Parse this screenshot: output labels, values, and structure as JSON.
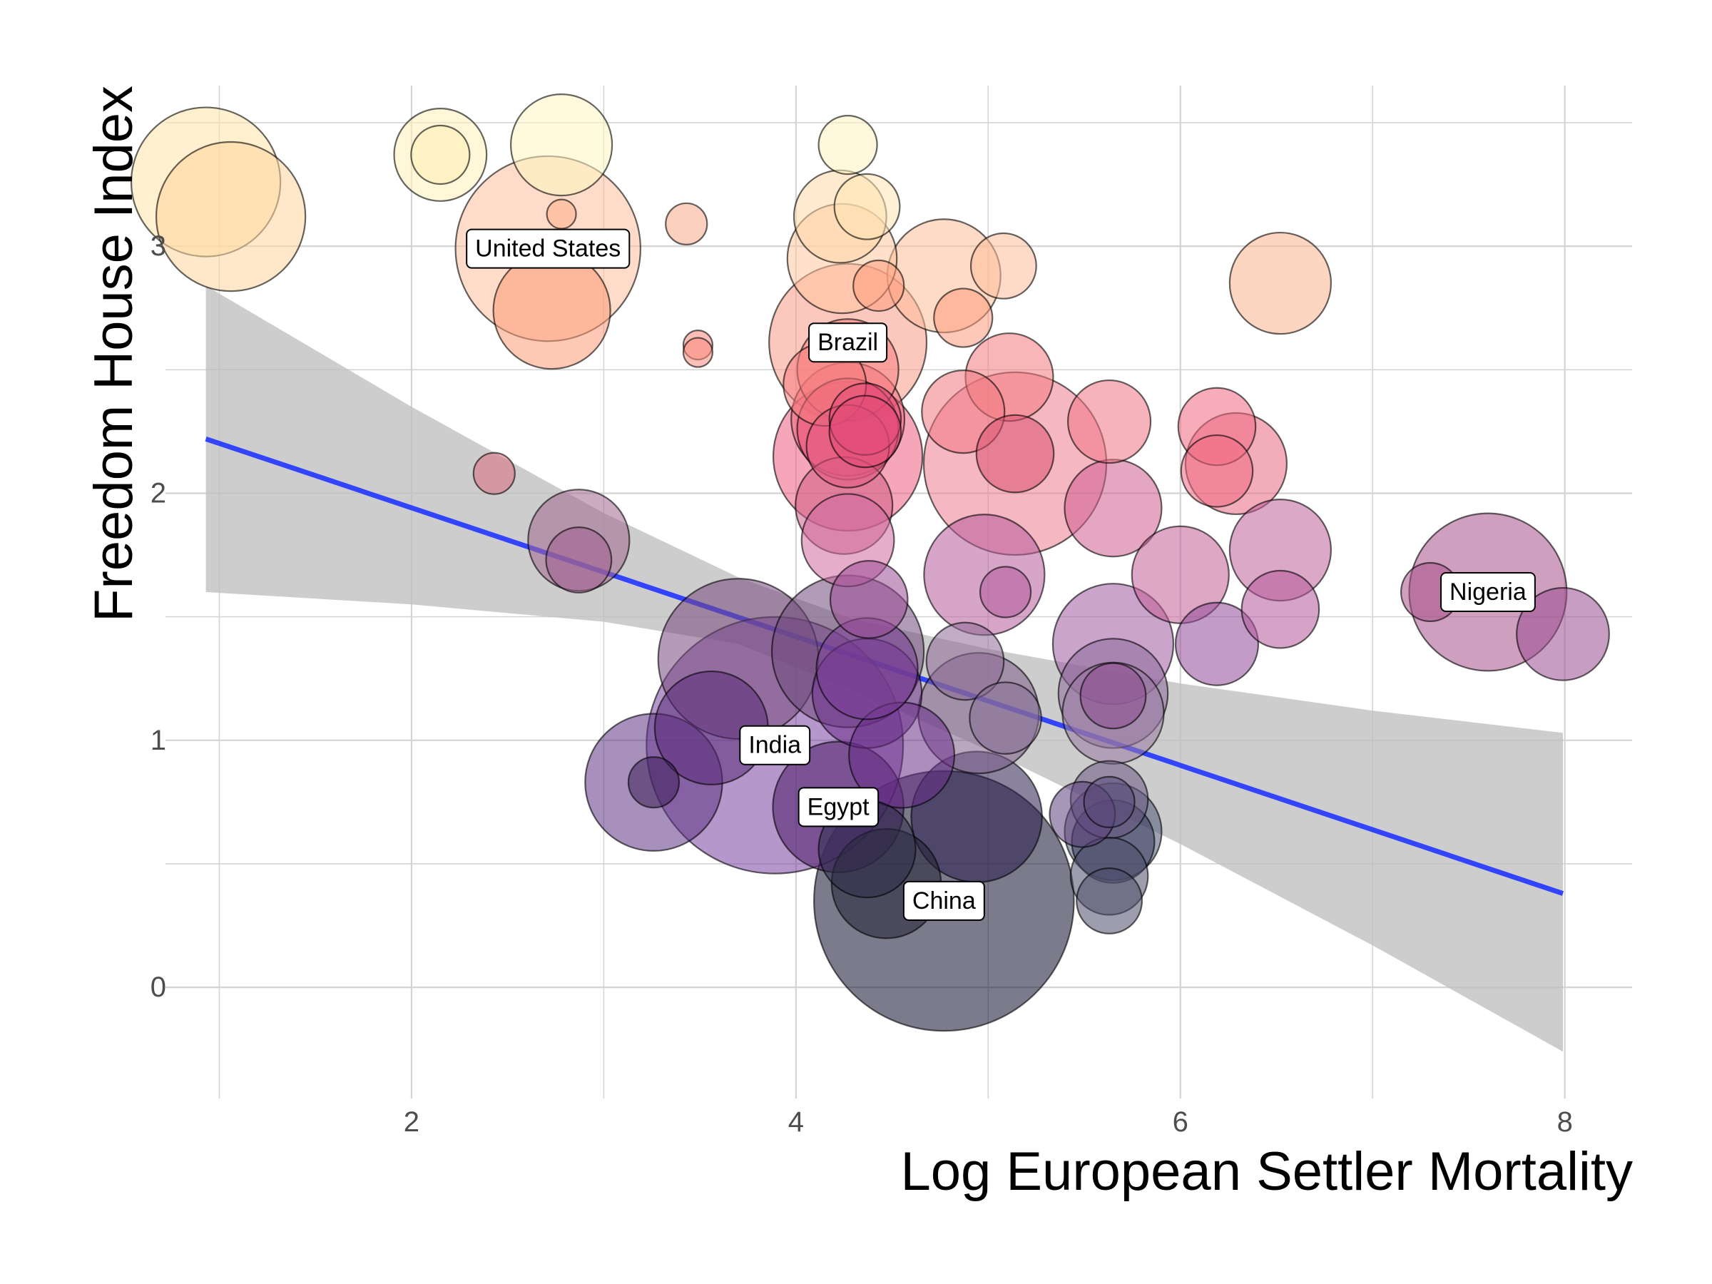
{
  "chart_data": {
    "type": "scatter",
    "title": "",
    "xlabel": "Log European Settler Mortality",
    "ylabel": "Freedom House Index",
    "xlim": [
      0.72,
      8.35
    ],
    "ylim": [
      -0.45,
      3.65
    ],
    "x_ticks": [
      2,
      4,
      6,
      8
    ],
    "x_tick_labels": [
      "2",
      "4",
      "6",
      "8"
    ],
    "y_ticks": [
      0,
      1,
      2,
      3
    ],
    "y_tick_labels": [
      "0",
      "1",
      "2",
      "3"
    ],
    "grid": true,
    "legend": "none",
    "colors": {
      "trend_line": "#3344ff",
      "confidence_band": "#bfbfbf",
      "grid": "#d4d4d4",
      "point_stroke": "#000000",
      "label_box": "#ffffff",
      "palette": [
        "#fff3c0",
        "#ffd09f",
        "#fca98a",
        "#f97a86",
        "#e35a7d",
        "#c06c97",
        "#9f5aa0",
        "#7a3e95",
        "#5a2b78",
        "#2f2e4a"
      ]
    },
    "points": [
      {
        "x": 0.93,
        "y": 3.26,
        "size": 26,
        "color": "#ffe4a8"
      },
      {
        "x": 1.06,
        "y": 3.12,
        "size": 26,
        "color": "#ffd59e"
      },
      {
        "x": 2.15,
        "y": 3.37,
        "size": 10,
        "color": "#fff0b8"
      },
      {
        "x": 2.15,
        "y": 3.37,
        "size": 4,
        "color": "#fff0b8"
      },
      {
        "x": 2.78,
        "y": 3.41,
        "size": 12,
        "color": "#fff6c2"
      },
      {
        "x": 2.78,
        "y": 3.13,
        "size": 1,
        "color": "#ffb18a"
      },
      {
        "x": 2.71,
        "y": 2.99,
        "size": 40,
        "color": "#ffc09d",
        "label": "United States"
      },
      {
        "x": 2.73,
        "y": 2.74,
        "size": 16,
        "color": "#fb9b76"
      },
      {
        "x": 3.43,
        "y": 3.09,
        "size": 2,
        "color": "#f7a98a"
      },
      {
        "x": 3.49,
        "y": 2.6,
        "size": 1,
        "color": "#fa8a7e"
      },
      {
        "x": 3.49,
        "y": 2.57,
        "size": 1,
        "color": "#fa8a7e"
      },
      {
        "x": 2.43,
        "y": 2.08,
        "size": 2,
        "color": "#d86e7f"
      },
      {
        "x": 2.87,
        "y": 1.81,
        "size": 12,
        "color": "#a2678f"
      },
      {
        "x": 2.87,
        "y": 1.73,
        "size": 5,
        "color": "#9f5f8e"
      },
      {
        "x": 4.27,
        "y": 3.41,
        "size": 4,
        "color": "#fff3c0"
      },
      {
        "x": 4.37,
        "y": 3.16,
        "size": 5,
        "color": "#ffe3b5"
      },
      {
        "x": 4.23,
        "y": 3.12,
        "size": 10,
        "color": "#ffd8a8"
      },
      {
        "x": 4.24,
        "y": 2.95,
        "size": 14,
        "color": "#ffc79e"
      },
      {
        "x": 4.43,
        "y": 2.84,
        "size": 3,
        "color": "#ff9c7e"
      },
      {
        "x": 4.77,
        "y": 2.88,
        "size": 15,
        "color": "#fdbd98"
      },
      {
        "x": 5.08,
        "y": 2.92,
        "size": 5,
        "color": "#fdbe9a"
      },
      {
        "x": 4.87,
        "y": 2.71,
        "size": 4,
        "color": "#fb9a7c"
      },
      {
        "x": 6.52,
        "y": 2.85,
        "size": 12,
        "color": "#fcb58f"
      },
      {
        "x": 4.27,
        "y": 2.61,
        "size": 29,
        "color": "#f99a88",
        "label": "Brazil"
      },
      {
        "x": 4.27,
        "y": 2.5,
        "size": 12,
        "color": "#f7807f"
      },
      {
        "x": 4.15,
        "y": 2.44,
        "size": 8,
        "color": "#f57c7e"
      },
      {
        "x": 5.11,
        "y": 2.47,
        "size": 9,
        "color": "#f47a7e"
      },
      {
        "x": 4.27,
        "y": 2.3,
        "size": 15,
        "color": "#f06c80"
      },
      {
        "x": 4.27,
        "y": 2.26,
        "size": 12,
        "color": "#e75079"
      },
      {
        "x": 4.36,
        "y": 2.3,
        "size": 6,
        "color": "#e14a76"
      },
      {
        "x": 4.36,
        "y": 2.25,
        "size": 6,
        "color": "#e14a76"
      },
      {
        "x": 4.87,
        "y": 2.33,
        "size": 8,
        "color": "#f17882"
      },
      {
        "x": 4.27,
        "y": 2.15,
        "size": 26,
        "color": "#ec5f80"
      },
      {
        "x": 4.27,
        "y": 2.19,
        "size": 8,
        "color": "#e35a7d"
      },
      {
        "x": 5.14,
        "y": 2.12,
        "size": 39,
        "color": "#ec7b8e"
      },
      {
        "x": 5.14,
        "y": 2.16,
        "size": 7,
        "color": "#d9506f"
      },
      {
        "x": 5.63,
        "y": 2.29,
        "size": 8,
        "color": "#f17585"
      },
      {
        "x": 6.19,
        "y": 2.27,
        "size": 7,
        "color": "#f06a80"
      },
      {
        "x": 6.19,
        "y": 2.09,
        "size": 6,
        "color": "#ee6a82"
      },
      {
        "x": 6.29,
        "y": 2.12,
        "size": 12,
        "color": "#e86882"
      },
      {
        "x": 4.25,
        "y": 1.95,
        "size": 11,
        "color": "#d05c88"
      },
      {
        "x": 4.27,
        "y": 1.81,
        "size": 10,
        "color": "#cf6aa0"
      },
      {
        "x": 5.65,
        "y": 1.94,
        "size": 11,
        "color": "#cd5d8e"
      },
      {
        "x": 4.98,
        "y": 1.67,
        "size": 17,
        "color": "#b55b9a"
      },
      {
        "x": 5.09,
        "y": 1.6,
        "size": 3,
        "color": "#b55b9a"
      },
      {
        "x": 6.0,
        "y": 1.67,
        "size": 11,
        "color": "#c45f97"
      },
      {
        "x": 6.52,
        "y": 1.77,
        "size": 12,
        "color": "#c0609a"
      },
      {
        "x": 6.52,
        "y": 1.53,
        "size": 7,
        "color": "#b5589b"
      },
      {
        "x": 7.6,
        "y": 1.6,
        "size": 29,
        "color": "#a8508a",
        "label": "Nigeria"
      },
      {
        "x": 7.3,
        "y": 1.6,
        "size": 4,
        "color": "#a8508a"
      },
      {
        "x": 7.99,
        "y": 1.43,
        "size": 10,
        "color": "#9a4c92"
      },
      {
        "x": 4.38,
        "y": 1.57,
        "size": 7,
        "color": "#9a4c95"
      },
      {
        "x": 3.7,
        "y": 1.33,
        "size": 30,
        "color": "#774a7e"
      },
      {
        "x": 4.27,
        "y": 1.36,
        "size": 27,
        "color": "#6f4a7c"
      },
      {
        "x": 4.37,
        "y": 1.29,
        "size": 12,
        "color": "#7a3e95"
      },
      {
        "x": 4.37,
        "y": 1.19,
        "size": 14,
        "color": "#6b2f8a"
      },
      {
        "x": 4.88,
        "y": 1.32,
        "size": 7,
        "color": "#8e6a95"
      },
      {
        "x": 5.65,
        "y": 1.39,
        "size": 17,
        "color": "#9f5aa0"
      },
      {
        "x": 5.65,
        "y": 1.19,
        "size": 14,
        "color": "#8d6b9a"
      },
      {
        "x": 5.65,
        "y": 1.11,
        "size": 12,
        "color": "#9a7aa3"
      },
      {
        "x": 5.65,
        "y": 1.18,
        "size": 5,
        "color": "#8c4d8e"
      },
      {
        "x": 6.19,
        "y": 1.39,
        "size": 8,
        "color": "#8f4b99"
      },
      {
        "x": 4.95,
        "y": 1.11,
        "size": 17,
        "color": "#7d5f8a"
      },
      {
        "x": 5.09,
        "y": 1.09,
        "size": 6,
        "color": "#8a6f99"
      },
      {
        "x": 3.89,
        "y": 0.98,
        "size": 77,
        "color": "#7a42a0",
        "label": "India"
      },
      {
        "x": 3.56,
        "y": 1.05,
        "size": 15,
        "color": "#5a2b78"
      },
      {
        "x": 3.26,
        "y": 0.83,
        "size": 22,
        "color": "#5e3585"
      },
      {
        "x": 3.26,
        "y": 0.83,
        "size": 3,
        "color": "#3e1f5a"
      },
      {
        "x": 4.55,
        "y": 0.94,
        "size": 13,
        "color": "#6a2d88"
      },
      {
        "x": 4.22,
        "y": 0.73,
        "size": 20,
        "color": "#4a1c6a",
        "label": "Egypt"
      },
      {
        "x": 4.37,
        "y": 0.56,
        "size": 11,
        "color": "#2f2e4a"
      },
      {
        "x": 4.47,
        "y": 0.42,
        "size": 14,
        "color": "#252235"
      },
      {
        "x": 4.77,
        "y": 0.35,
        "size": 79,
        "color": "#0f0f2e",
        "label": "China"
      },
      {
        "x": 4.94,
        "y": 0.69,
        "size": 20,
        "color": "#2a1d4e"
      },
      {
        "x": 5.49,
        "y": 0.7,
        "size": 5,
        "color": "#5c3f7b"
      },
      {
        "x": 5.63,
        "y": 0.76,
        "size": 7,
        "color": "#6a5a84"
      },
      {
        "x": 5.63,
        "y": 0.75,
        "size": 3,
        "color": "#5a4a78"
      },
      {
        "x": 5.65,
        "y": 0.63,
        "size": 11,
        "color": "#515a78"
      },
      {
        "x": 5.65,
        "y": 0.59,
        "size": 8,
        "color": "#35385a"
      },
      {
        "x": 5.63,
        "y": 0.45,
        "size": 7,
        "color": "#4d4d6a"
      },
      {
        "x": 5.63,
        "y": 0.35,
        "size": 5,
        "color": "#4d4d6a"
      }
    ],
    "regression": {
      "x": [
        0.93,
        7.99
      ],
      "y": [
        2.22,
        0.38
      ]
    },
    "confidence_band": {
      "x": [
        0.93,
        2,
        3,
        3.7,
        4.3,
        5,
        6,
        7,
        7.99
      ],
      "upper": [
        2.84,
        2.35,
        1.92,
        1.66,
        1.49,
        1.37,
        1.23,
        1.12,
        1.03
      ],
      "lower": [
        1.6,
        1.55,
        1.48,
        1.39,
        1.2,
        0.96,
        0.58,
        0.17,
        -0.26
      ]
    }
  }
}
